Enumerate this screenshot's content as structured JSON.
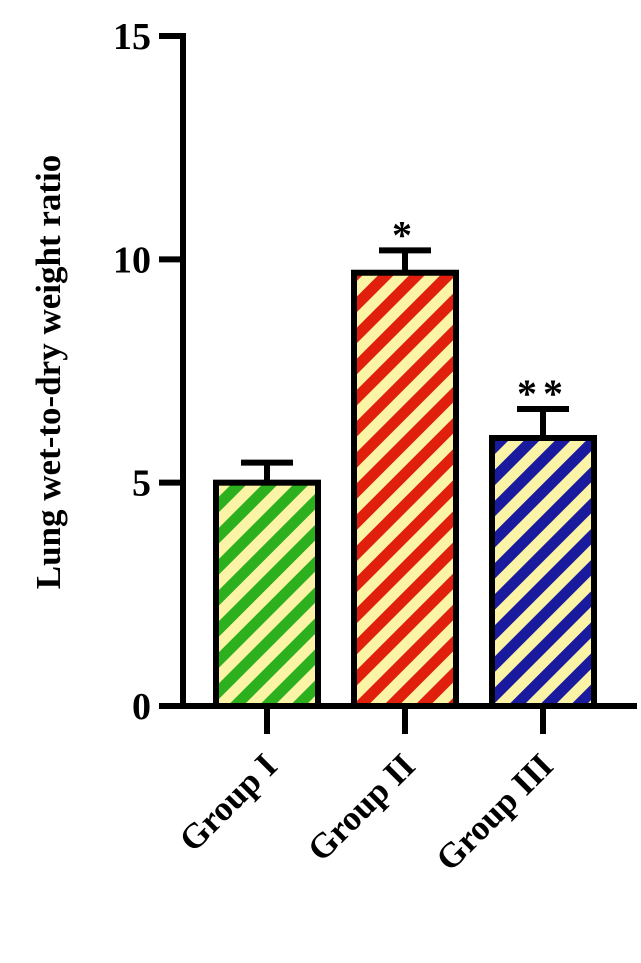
{
  "chart_data": {
    "type": "bar",
    "y_label": "Lung wet-to-dry weight ratio",
    "categories": [
      "Group I",
      "Group II",
      "Group III"
    ],
    "values": [
      5.0,
      9.7,
      6.0
    ],
    "errors": [
      0.45,
      0.5,
      0.65
    ],
    "annotations": [
      null,
      "*",
      "**"
    ],
    "colors": [
      "#2cb01e",
      "#e0200c",
      "#1a1a9e"
    ],
    "hatch_background": "#fbf3a6",
    "ylim": [
      0,
      15
    ],
    "yticks": [
      0,
      5,
      10,
      15
    ],
    "grid": false
  }
}
